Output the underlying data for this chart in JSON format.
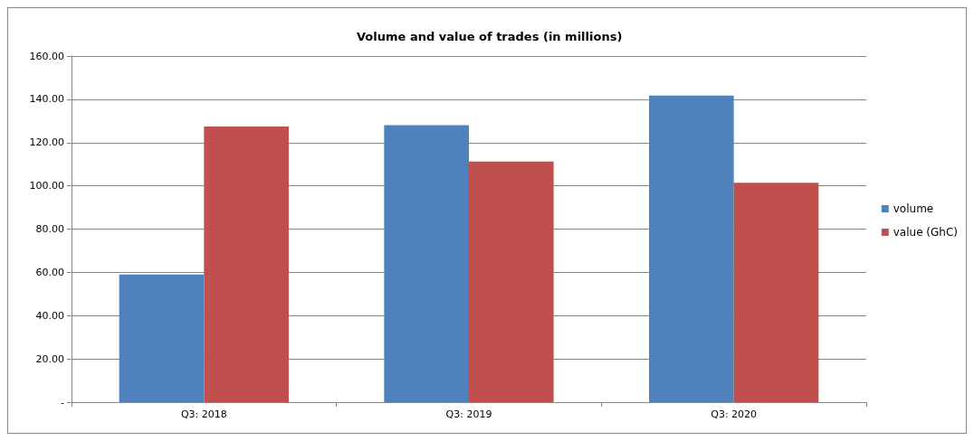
{
  "chart_data": {
    "type": "bar",
    "title": "Volume and value of trades (in millions)",
    "categories": [
      "Q3: 2018",
      "Q3: 2019",
      "Q3: 2020"
    ],
    "series": [
      {
        "name": "volume",
        "color": "#4f81bd",
        "values": [
          59.0,
          128.0,
          141.7
        ]
      },
      {
        "name": "value (GhC)",
        "color": "#c0504d",
        "values": [
          127.4,
          111.2,
          101.4
        ]
      }
    ],
    "ylim": [
      0,
      160
    ],
    "yticks": [
      {
        "value": 0,
        "label": "-"
      },
      {
        "value": 20,
        "label": "20.00"
      },
      {
        "value": 40,
        "label": "40.00"
      },
      {
        "value": 60,
        "label": "60.00"
      },
      {
        "value": 80,
        "label": "80.00"
      },
      {
        "value": 100,
        "label": "100.00"
      },
      {
        "value": 120,
        "label": "120.00"
      },
      {
        "value": 140,
        "label": "140.00"
      },
      {
        "value": 160,
        "label": "160.00"
      }
    ],
    "grid": "y",
    "legend": "right"
  }
}
